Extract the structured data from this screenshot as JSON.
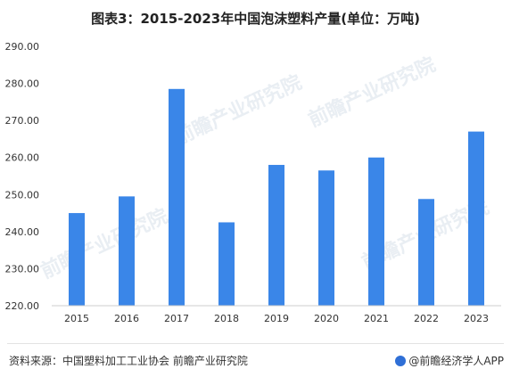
{
  "title": "图表3：2015-2023年中国泡沫塑料产量(单位：万吨)",
  "source": "资料来源：中国塑料加工工业协会 前瞻产业研究院",
  "brand": "@前瞻经济学人APP",
  "watermark": "前瞻产业研究院",
  "colors": {
    "bar": "#3a86e8",
    "grid": "#e6e6e6"
  },
  "chart_data": {
    "type": "bar",
    "categories": [
      "2015",
      "2016",
      "2017",
      "2018",
      "2019",
      "2020",
      "2021",
      "2022",
      "2023"
    ],
    "values": [
      245.0,
      249.5,
      278.5,
      242.5,
      258.0,
      256.5,
      260.0,
      248.8,
      267.0
    ],
    "yticks": [
      "220.00",
      "230.00",
      "240.00",
      "250.00",
      "260.00",
      "270.00",
      "280.00",
      "290.00"
    ],
    "ylim": [
      220,
      290
    ],
    "grid": false,
    "legend": "none"
  }
}
